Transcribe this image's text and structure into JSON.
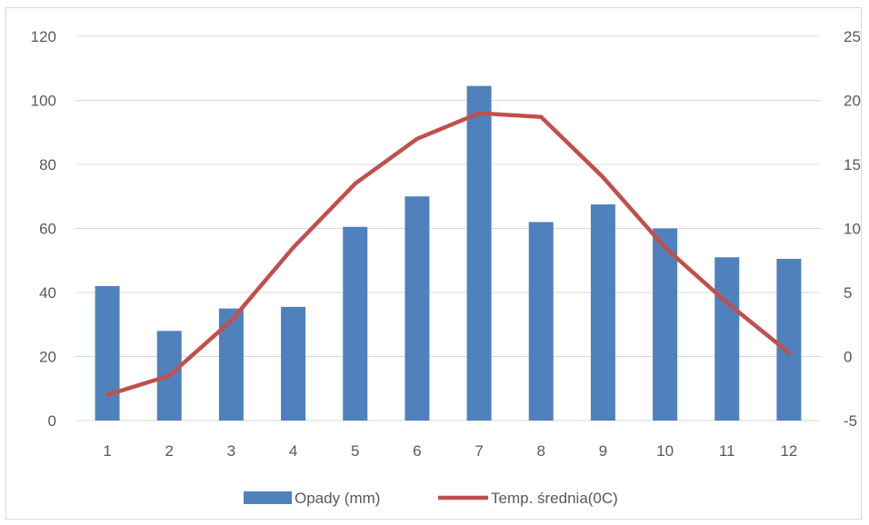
{
  "chart_data": {
    "type": "bar",
    "categories": [
      "1",
      "2",
      "3",
      "4",
      "5",
      "6",
      "7",
      "8",
      "9",
      "10",
      "11",
      "12"
    ],
    "series": [
      {
        "name": "Opady (mm)",
        "type": "bar",
        "axis": "left",
        "color": "#4f81bd",
        "values": [
          42,
          28,
          35,
          35.5,
          60.5,
          70,
          104.5,
          62,
          67.5,
          60,
          51,
          50.5
        ]
      },
      {
        "name": "Temp. średnia(0C)",
        "type": "line",
        "axis": "right",
        "color": "#c0504d",
        "values": [
          -3,
          -1.5,
          2.8,
          8.5,
          13.5,
          17,
          19,
          18.7,
          14,
          8.5,
          4.2,
          0.3
        ]
      }
    ],
    "y_left": {
      "ticks": [
        "0",
        "20",
        "40",
        "60",
        "80",
        "100",
        "120"
      ],
      "ylim": [
        0,
        120
      ]
    },
    "y_right": {
      "ticks": [
        "-5",
        "0",
        "5",
        "10",
        "15",
        "20",
        "25"
      ],
      "ylim": [
        -5,
        25
      ]
    },
    "grid": true,
    "legend": "bottom"
  }
}
